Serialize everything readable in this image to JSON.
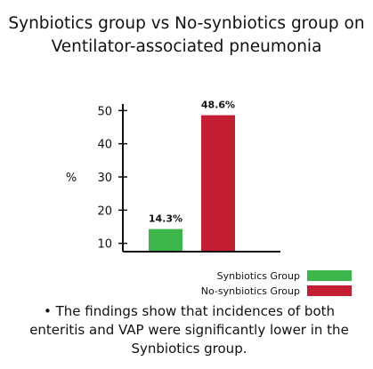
{
  "title_lines": [
    "Synbiotics group vs No-synbiotics group on",
    "Ventilator-associated pneumonia"
  ],
  "chart_data": {
    "type": "bar",
    "categories": [
      "Synbiotics Group",
      "No-synbiotics Group"
    ],
    "values": [
      14.3,
      48.6
    ],
    "data_labels": [
      "14.3%",
      "48.6%"
    ],
    "colors": [
      "#3cb54a",
      "#c41e32"
    ],
    "ylabel": "%",
    "yticks": [
      10,
      20,
      30,
      40,
      50
    ],
    "ylim": [
      7.5,
      52.5
    ],
    "grid": false,
    "legend_position": "bottom-right"
  },
  "legend": [
    {
      "label": "Synbiotics Group",
      "color": "#3cb54a"
    },
    {
      "label": "No-synbiotics Group",
      "color": "#c41e32"
    }
  ],
  "note": "•  The findings show that incidences of both enteritis and VAP were significantly lower in the Synbiotics group."
}
